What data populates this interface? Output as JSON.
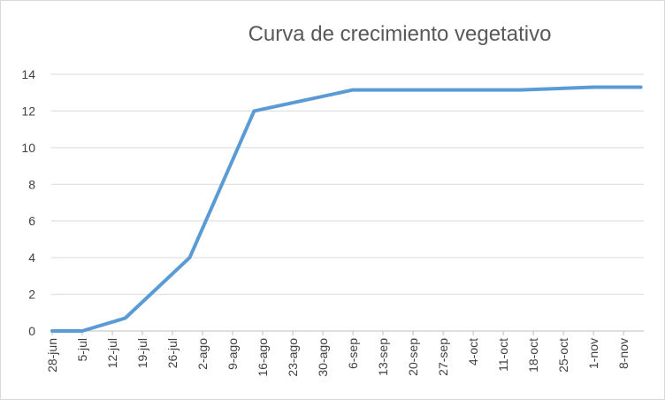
{
  "chart_data": {
    "type": "line",
    "title": "Curva de crecimiento vegetativo",
    "xlabel": "",
    "ylabel": "",
    "ylim": [
      0,
      14
    ],
    "yticks": [
      0,
      2,
      4,
      6,
      8,
      10,
      12,
      14
    ],
    "categories": [
      "28-jun",
      "5-jul",
      "12-jul",
      "19-jul",
      "26-jul",
      "2-ago",
      "9-ago",
      "16-ago",
      "23-ago",
      "30-ago",
      "6-sep",
      "13-sep",
      "20-sep",
      "27-sep",
      "4-oct",
      "11-oct",
      "18-oct",
      "25-oct",
      "1-nov",
      "8-nov"
    ],
    "series": [
      {
        "color": "#5b9bd5",
        "points": [
          {
            "x": "28-jun",
            "y": 0
          },
          {
            "x": "5-jul",
            "y": 0
          },
          {
            "x": "15-jul",
            "y": 0.7
          },
          {
            "x": "30-jul",
            "y": 4.0
          },
          {
            "x": "14-ago",
            "y": 12.0
          },
          {
            "x": "6-sep",
            "y": 13.15
          },
          {
            "x": "15-oct",
            "y": 13.15
          },
          {
            "x": "1-nov",
            "y": 13.3
          },
          {
            "x": "12-nov",
            "y": 13.3
          }
        ]
      }
    ],
    "grid": true,
    "legend": "none"
  }
}
